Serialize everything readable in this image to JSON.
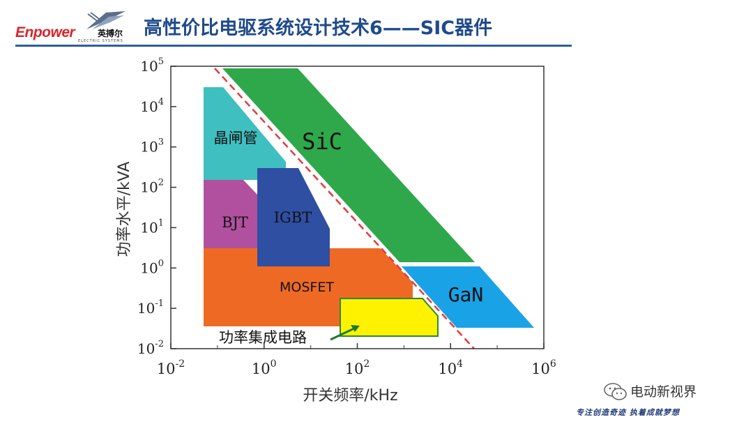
{
  "header": {
    "logo_text": "Enpower",
    "logo_cn": "英搏尔",
    "logo_sub": "ELECTRIC SYSTEMS",
    "title": "高性价比电驱系统设计技术6——SIC器件"
  },
  "chart_data": {
    "type": "region-map",
    "xlabel": "开关频率/kHz",
    "ylabel": "功率水平/kVA",
    "x_ticks": [
      {
        "base": "10",
        "exp": "-2"
      },
      {
        "base": "10",
        "exp": "0"
      },
      {
        "base": "10",
        "exp": "2"
      },
      {
        "base": "10",
        "exp": "4"
      },
      {
        "base": "10",
        "exp": "6"
      }
    ],
    "y_ticks": [
      {
        "base": "10",
        "exp": "5"
      },
      {
        "base": "10",
        "exp": "4"
      },
      {
        "base": "10",
        "exp": "3"
      },
      {
        "base": "10",
        "exp": "2"
      },
      {
        "base": "10",
        "exp": "1"
      },
      {
        "base": "10",
        "exp": "0"
      },
      {
        "base": "10",
        "exp": "-1"
      },
      {
        "base": "10",
        "exp": "-2"
      }
    ],
    "xlim_log10": [
      -2,
      6
    ],
    "ylim_log10": [
      -2,
      5
    ],
    "scale": "log-log",
    "regions": [
      {
        "label": "晶闸管",
        "color": "#3fbfc0"
      },
      {
        "label": "BJT",
        "color": "#b0509f"
      },
      {
        "label": "IGBT",
        "color": "#2e4fa2"
      },
      {
        "label": "MOSFET",
        "color": "#ee6a24"
      },
      {
        "label": "功率集成电路",
        "color": "#fff200"
      },
      {
        "label": "SiC",
        "color": "#2ea84a"
      },
      {
        "label": "GaN",
        "color": "#1aa2e6"
      }
    ],
    "boundary_line": {
      "style": "dashed",
      "color": "#e8383d"
    }
  },
  "watermark": {
    "name": "电动新视界",
    "slogan": "专注创造奇迹 执着成就梦想"
  }
}
